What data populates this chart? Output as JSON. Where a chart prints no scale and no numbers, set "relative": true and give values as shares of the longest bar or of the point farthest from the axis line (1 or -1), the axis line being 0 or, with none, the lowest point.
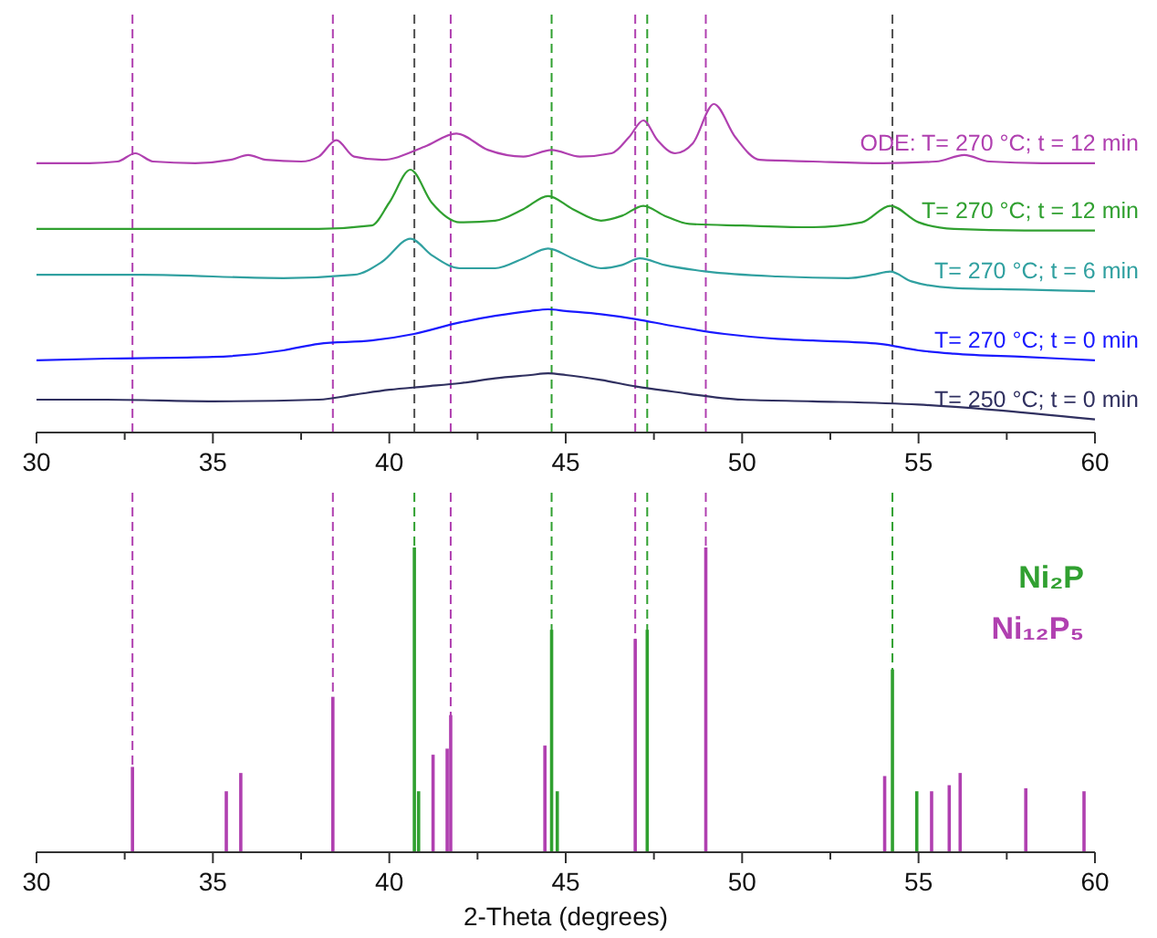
{
  "chart_data": [
    {
      "type": "line",
      "relative": true,
      "xlim": [
        30,
        60
      ],
      "xticks": [
        30,
        {
          "value": 32.5,
          "label": null
        },
        35,
        {
          "value": 37.5,
          "label": null
        },
        40,
        {
          "value": 42.5,
          "label": null
        },
        45,
        {
          "value": 47.5,
          "label": null
        },
        50,
        {
          "value": 52.5,
          "label": null
        },
        55,
        {
          "value": 57.5,
          "label": null
        },
        60
      ],
      "tick_labels": "x",
      "legend": false,
      "grid": false,
      "marker": "none",
      "line_style": "solid",
      "series": [
        {
          "name": "ODE: T= 270 °C; t = 12 min",
          "color": "#b040b0",
          "x": [
            30,
            31.5,
            32.3,
            32.8,
            33.3,
            34.5,
            35.5,
            36,
            36.5,
            37.5,
            38,
            38.5,
            39,
            39.8,
            41,
            41.9,
            42.8,
            43.8,
            44.6,
            45.4,
            46.3,
            46.8,
            47.2,
            47.6,
            48.1,
            48.6,
            49.2,
            49.8,
            50.5,
            52,
            54,
            55.5,
            56.3,
            57,
            58.5,
            60
          ],
          "values": [
            0.82,
            0.82,
            0.825,
            0.85,
            0.825,
            0.82,
            0.83,
            0.845,
            0.83,
            0.825,
            0.84,
            0.89,
            0.84,
            0.83,
            0.87,
            0.91,
            0.86,
            0.84,
            0.86,
            0.84,
            0.85,
            0.9,
            0.95,
            0.89,
            0.85,
            0.88,
            1,
            0.9,
            0.83,
            0.825,
            0.82,
            0.825,
            0.845,
            0.825,
            0.82,
            0.82
          ]
        },
        {
          "name": "T= 270 °C; t = 12 min",
          "color": "#30a030",
          "x": [
            30,
            33,
            36,
            38,
            39.5,
            40,
            40.6,
            41.2,
            42,
            43,
            43.8,
            44.5,
            45.2,
            46,
            46.6,
            47.2,
            47.8,
            48.5,
            50,
            52,
            53.4,
            54.2,
            55,
            56,
            58,
            60
          ],
          "values": [
            0.62,
            0.62,
            0.62,
            0.62,
            0.63,
            0.7,
            0.8,
            0.7,
            0.64,
            0.645,
            0.68,
            0.72,
            0.68,
            0.645,
            0.66,
            0.69,
            0.66,
            0.635,
            0.63,
            0.625,
            0.64,
            0.69,
            0.64,
            0.62,
            0.615,
            0.615
          ]
        },
        {
          "name": "T= 270 °C; t = 6 min",
          "color": "#30a0a0",
          "x": [
            30,
            33,
            37,
            39,
            39.8,
            40.6,
            41.2,
            42,
            43,
            43.8,
            44.5,
            45.2,
            46,
            46.6,
            47.1,
            47.8,
            49,
            51,
            53,
            53.7,
            54.2,
            54.8,
            56,
            58,
            60
          ],
          "values": [
            0.48,
            0.48,
            0.47,
            0.48,
            0.52,
            0.59,
            0.54,
            0.5,
            0.5,
            0.53,
            0.56,
            0.53,
            0.5,
            0.51,
            0.53,
            0.51,
            0.49,
            0.475,
            0.47,
            0.48,
            0.49,
            0.46,
            0.44,
            0.435,
            0.43
          ]
        },
        {
          "name": "T= 270 °C; t = 0 min",
          "color": "#1a1aff",
          "x": [
            30,
            32,
            35,
            37,
            38,
            39.5,
            40.7,
            42,
            43,
            44,
            44.5,
            45,
            46,
            47,
            48,
            49.5,
            51,
            52,
            53.9,
            55,
            56,
            58,
            60
          ],
          "values": [
            0.22,
            0.225,
            0.23,
            0.25,
            0.27,
            0.28,
            0.3,
            0.335,
            0.355,
            0.37,
            0.375,
            0.37,
            0.36,
            0.345,
            0.325,
            0.3,
            0.285,
            0.28,
            0.27,
            0.25,
            0.24,
            0.23,
            0.22
          ]
        },
        {
          "name": "T= 250 °C; t = 0 min",
          "color": "#303060",
          "x": [
            30,
            32,
            35,
            38,
            39,
            40,
            41,
            42,
            43,
            44,
            44.5,
            45,
            46,
            47,
            48,
            50,
            52,
            55,
            57,
            60
          ],
          "values": [
            0.1,
            0.1,
            0.095,
            0.1,
            0.115,
            0.13,
            0.14,
            0.15,
            0.165,
            0.175,
            0.18,
            0.175,
            0.16,
            0.14,
            0.125,
            0.1,
            0.095,
            0.085,
            0.07,
            0.04
          ]
        }
      ],
      "ref_lines": [
        {
          "axis": "x",
          "value": 32.72,
          "color": "#b040b0",
          "line_style": "dashed"
        },
        {
          "axis": "x",
          "value": 38.4,
          "color": "#b040b0",
          "line_style": "dashed"
        },
        {
          "axis": "x",
          "value": 40.71,
          "color": "#505050",
          "line_style": "dashed"
        },
        {
          "axis": "x",
          "value": 41.74,
          "color": "#b040b0",
          "line_style": "dashed"
        },
        {
          "axis": "x",
          "value": 44.6,
          "color": "#30a030",
          "line_style": "dashed"
        },
        {
          "axis": "x",
          "value": 46.97,
          "color": "#b040b0",
          "line_style": "dashed"
        },
        {
          "axis": "x",
          "value": 47.31,
          "color": "#30a030",
          "line_style": "dashed"
        },
        {
          "axis": "x",
          "value": 48.97,
          "color": "#b040b0",
          "line_style": "dashed"
        },
        {
          "axis": "x",
          "value": 54.26,
          "color": "#505050",
          "line_style": "dashed"
        }
      ]
    },
    {
      "type": "bar",
      "relative": true,
      "xlabel": "2-Theta (degrees)",
      "xlim": [
        30,
        60
      ],
      "xticks": [
        30,
        {
          "value": 32.5,
          "label": null
        },
        35,
        {
          "value": 37.5,
          "label": null
        },
        40,
        {
          "value": 42.5,
          "label": null
        },
        45,
        {
          "value": 47.5,
          "label": null
        },
        50,
        {
          "value": 52.5,
          "label": null
        },
        55,
        {
          "value": 57.5,
          "label": null
        },
        60
      ],
      "tick_labels": "x",
      "legend": "top right",
      "grid": false,
      "series": [
        {
          "name": "Ni₂P",
          "color": "#30a030",
          "x": [
            40.71,
            40.83,
            44.6,
            44.76,
            47.31,
            54.26,
            54.95
          ],
          "values": [
            1,
            0.2,
            0.73,
            0.2,
            0.73,
            0.6,
            0.2
          ]
        },
        {
          "name": "Ni₁₂P₅",
          "color": "#b040b0",
          "x": [
            32.72,
            35.38,
            35.79,
            38.4,
            41.24,
            41.64,
            41.74,
            44.41,
            46.97,
            48.97,
            54.04,
            55.37,
            55.87,
            56.18,
            58.04,
            59.69
          ],
          "values": [
            0.28,
            0.2,
            0.26,
            0.51,
            0.32,
            0.34,
            0.45,
            0.35,
            0.7,
            1,
            0.25,
            0.2,
            0.22,
            0.26,
            0.21,
            0.2
          ]
        }
      ],
      "ref_lines": [
        {
          "axis": "x",
          "value": 32.72,
          "color": "#b040b0",
          "line_style": "dashed"
        },
        {
          "axis": "x",
          "value": 38.4,
          "color": "#b040b0",
          "line_style": "dashed"
        },
        {
          "axis": "x",
          "value": 40.71,
          "color": "#30a030",
          "line_style": "dashed"
        },
        {
          "axis": "x",
          "value": 41.74,
          "color": "#b040b0",
          "line_style": "dashed"
        },
        {
          "axis": "x",
          "value": 44.6,
          "color": "#30a030",
          "line_style": "dashed"
        },
        {
          "axis": "x",
          "value": 46.97,
          "color": "#b040b0",
          "line_style": "dashed"
        },
        {
          "axis": "x",
          "value": 47.31,
          "color": "#30a030",
          "line_style": "dashed"
        },
        {
          "axis": "x",
          "value": 48.97,
          "color": "#b040b0",
          "line_style": "dashed"
        },
        {
          "axis": "x",
          "value": 54.26,
          "color": "#30a030",
          "line_style": "dashed"
        }
      ]
    }
  ]
}
